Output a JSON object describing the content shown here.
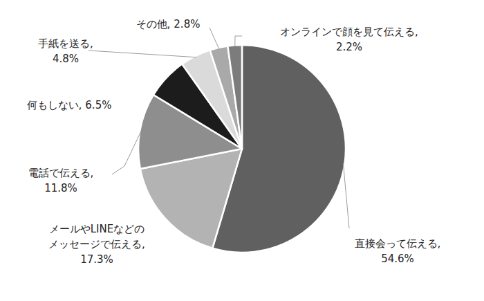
{
  "chart_data": {
    "type": "pie",
    "categories": [
      "直接会って伝える,",
      "メールやLINEなどの\nメッセージで伝える,",
      "電話で伝える,",
      "何もしない,",
      "手紙を送る,",
      "その他,",
      "オンラインで顔を見て伝える,"
    ],
    "values": [
      54.6,
      17.3,
      11.8,
      6.5,
      4.8,
      2.8,
      2.2
    ],
    "value_labels": [
      "54.6%",
      "17.3%",
      "11.8%",
      "6.5%",
      "4.8%",
      "2.8%",
      "2.2%"
    ],
    "colors": [
      "#606060",
      "#b3b3b3",
      "#8e8e8e",
      "#1c1c1c",
      "#dadada",
      "#a9a9a9",
      "#7c7c7c"
    ],
    "data_labels": true
  }
}
